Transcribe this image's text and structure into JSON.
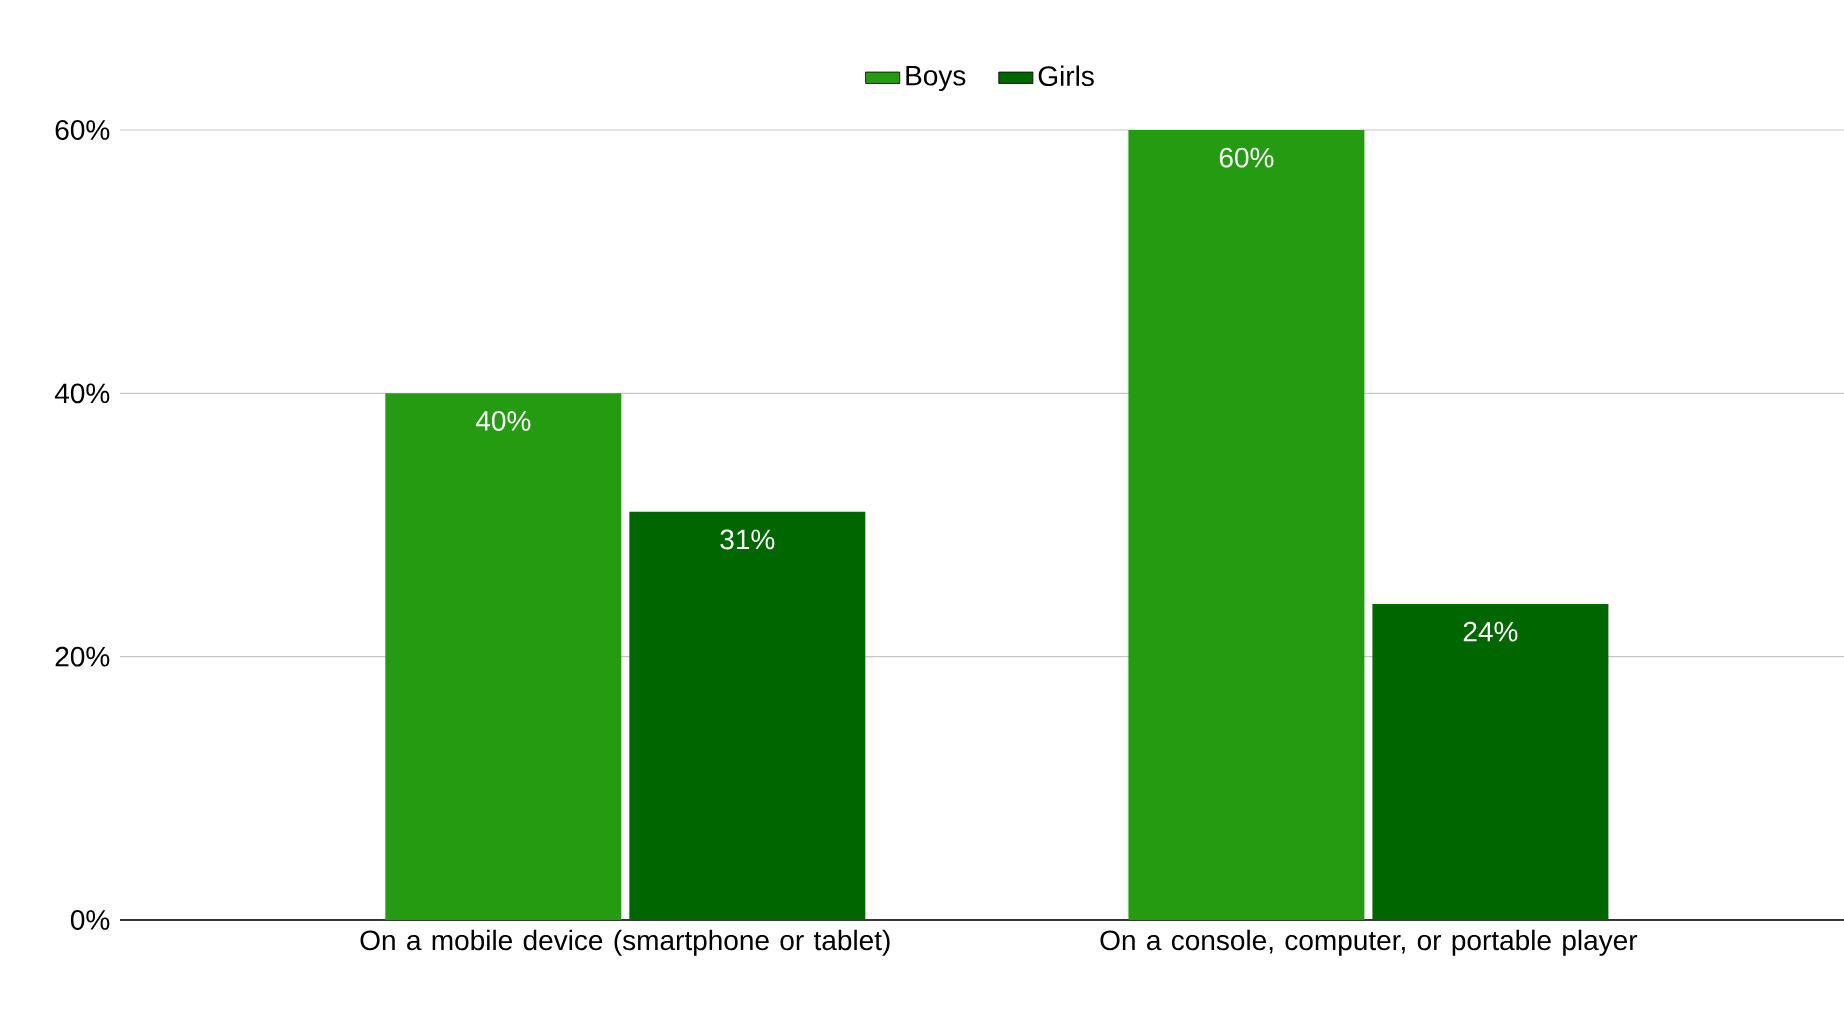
{
  "chart_data": {
    "type": "bar",
    "categories": [
      "On a mobile device (smartphone or tablet)",
      "On a console, computer, or portable player"
    ],
    "series": [
      {
        "name": "Boys",
        "color": "#259b12",
        "values": [
          40,
          60
        ],
        "value_labels": [
          "40%",
          "60%"
        ]
      },
      {
        "name": "Girls",
        "color": "#006600",
        "values": [
          31,
          24
        ],
        "value_labels": [
          "31%",
          "24%"
        ]
      }
    ],
    "ylim": [
      0,
      60
    ],
    "yticks": [
      {
        "value": 0,
        "label": "0%"
      },
      {
        "value": 20,
        "label": "20%"
      },
      {
        "value": 40,
        "label": "40%"
      },
      {
        "value": 60,
        "label": "60%"
      }
    ],
    "grid": "y",
    "legend": "top"
  }
}
